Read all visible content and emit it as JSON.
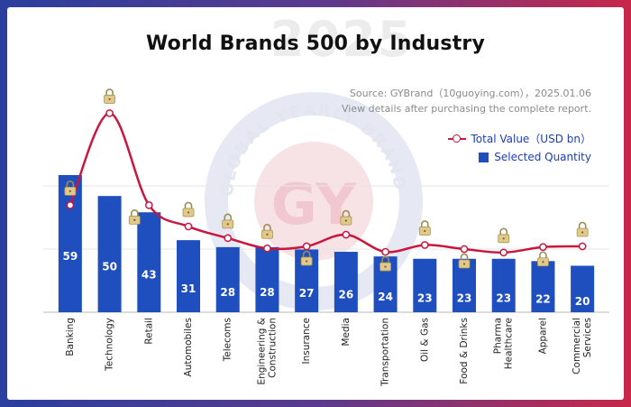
{
  "watermark": {
    "year": "2025",
    "text": "GLOBAL YEARLY BRAND INSTITUTE",
    "logo": "GY"
  },
  "header": {
    "source": "Source:  GYBrand（10guoying.com），2025.01.06",
    "note": "View details after purchasing the complete report."
  },
  "legend": {
    "line_label": "Total Value（USD bn）",
    "bar_label": "Selected Quantity"
  },
  "colors": {
    "bar": "#1f4fbf",
    "line": "#c8173f",
    "accent_left": "#2a3f9e",
    "accent_right": "#c8274a"
  },
  "chart_data": {
    "type": "bar",
    "title": "World Brands 500 by Industry",
    "categories": [
      "Banking",
      "Technology",
      "Retail",
      "Automobiles",
      "Telecoms",
      "Engineering & Construction",
      "Insurance",
      "Media",
      "Transportation",
      "Oil & Gas",
      "Food & Drinks",
      "Pharma Healthcare",
      "Apparel",
      "Commercial Services"
    ],
    "category_lines": [
      [
        "Banking"
      ],
      [
        "Technology"
      ],
      [
        "Retail"
      ],
      [
        "Automobiles"
      ],
      [
        "Telecoms"
      ],
      [
        "Engineering &",
        "Construction"
      ],
      [
        "Insurance"
      ],
      [
        "Media"
      ],
      [
        "Transportation"
      ],
      [
        "Oil & Gas"
      ],
      [
        "Food & Drinks"
      ],
      [
        "Pharma",
        "Healthcare"
      ],
      [
        "Apparel"
      ],
      [
        "Commercial",
        "Services"
      ]
    ],
    "series": [
      {
        "name": "Selected Quantity",
        "type": "bar",
        "values": [
          59,
          50,
          43,
          31,
          28,
          28,
          27,
          26,
          24,
          23,
          23,
          23,
          22,
          20
        ]
      },
      {
        "name": "Total Value（USD bn）",
        "type": "line",
        "hidden_values": true,
        "values": [
          1560,
          2900,
          1560,
          1250,
          1080,
          930,
          960,
          1130,
          880,
          980,
          920,
          870,
          950,
          960
        ]
      }
    ],
    "bar_ylim": [
      0,
      72
    ],
    "line_ylim": [
      0,
      3300
    ],
    "grid": true,
    "legend_position": "top-right"
  }
}
